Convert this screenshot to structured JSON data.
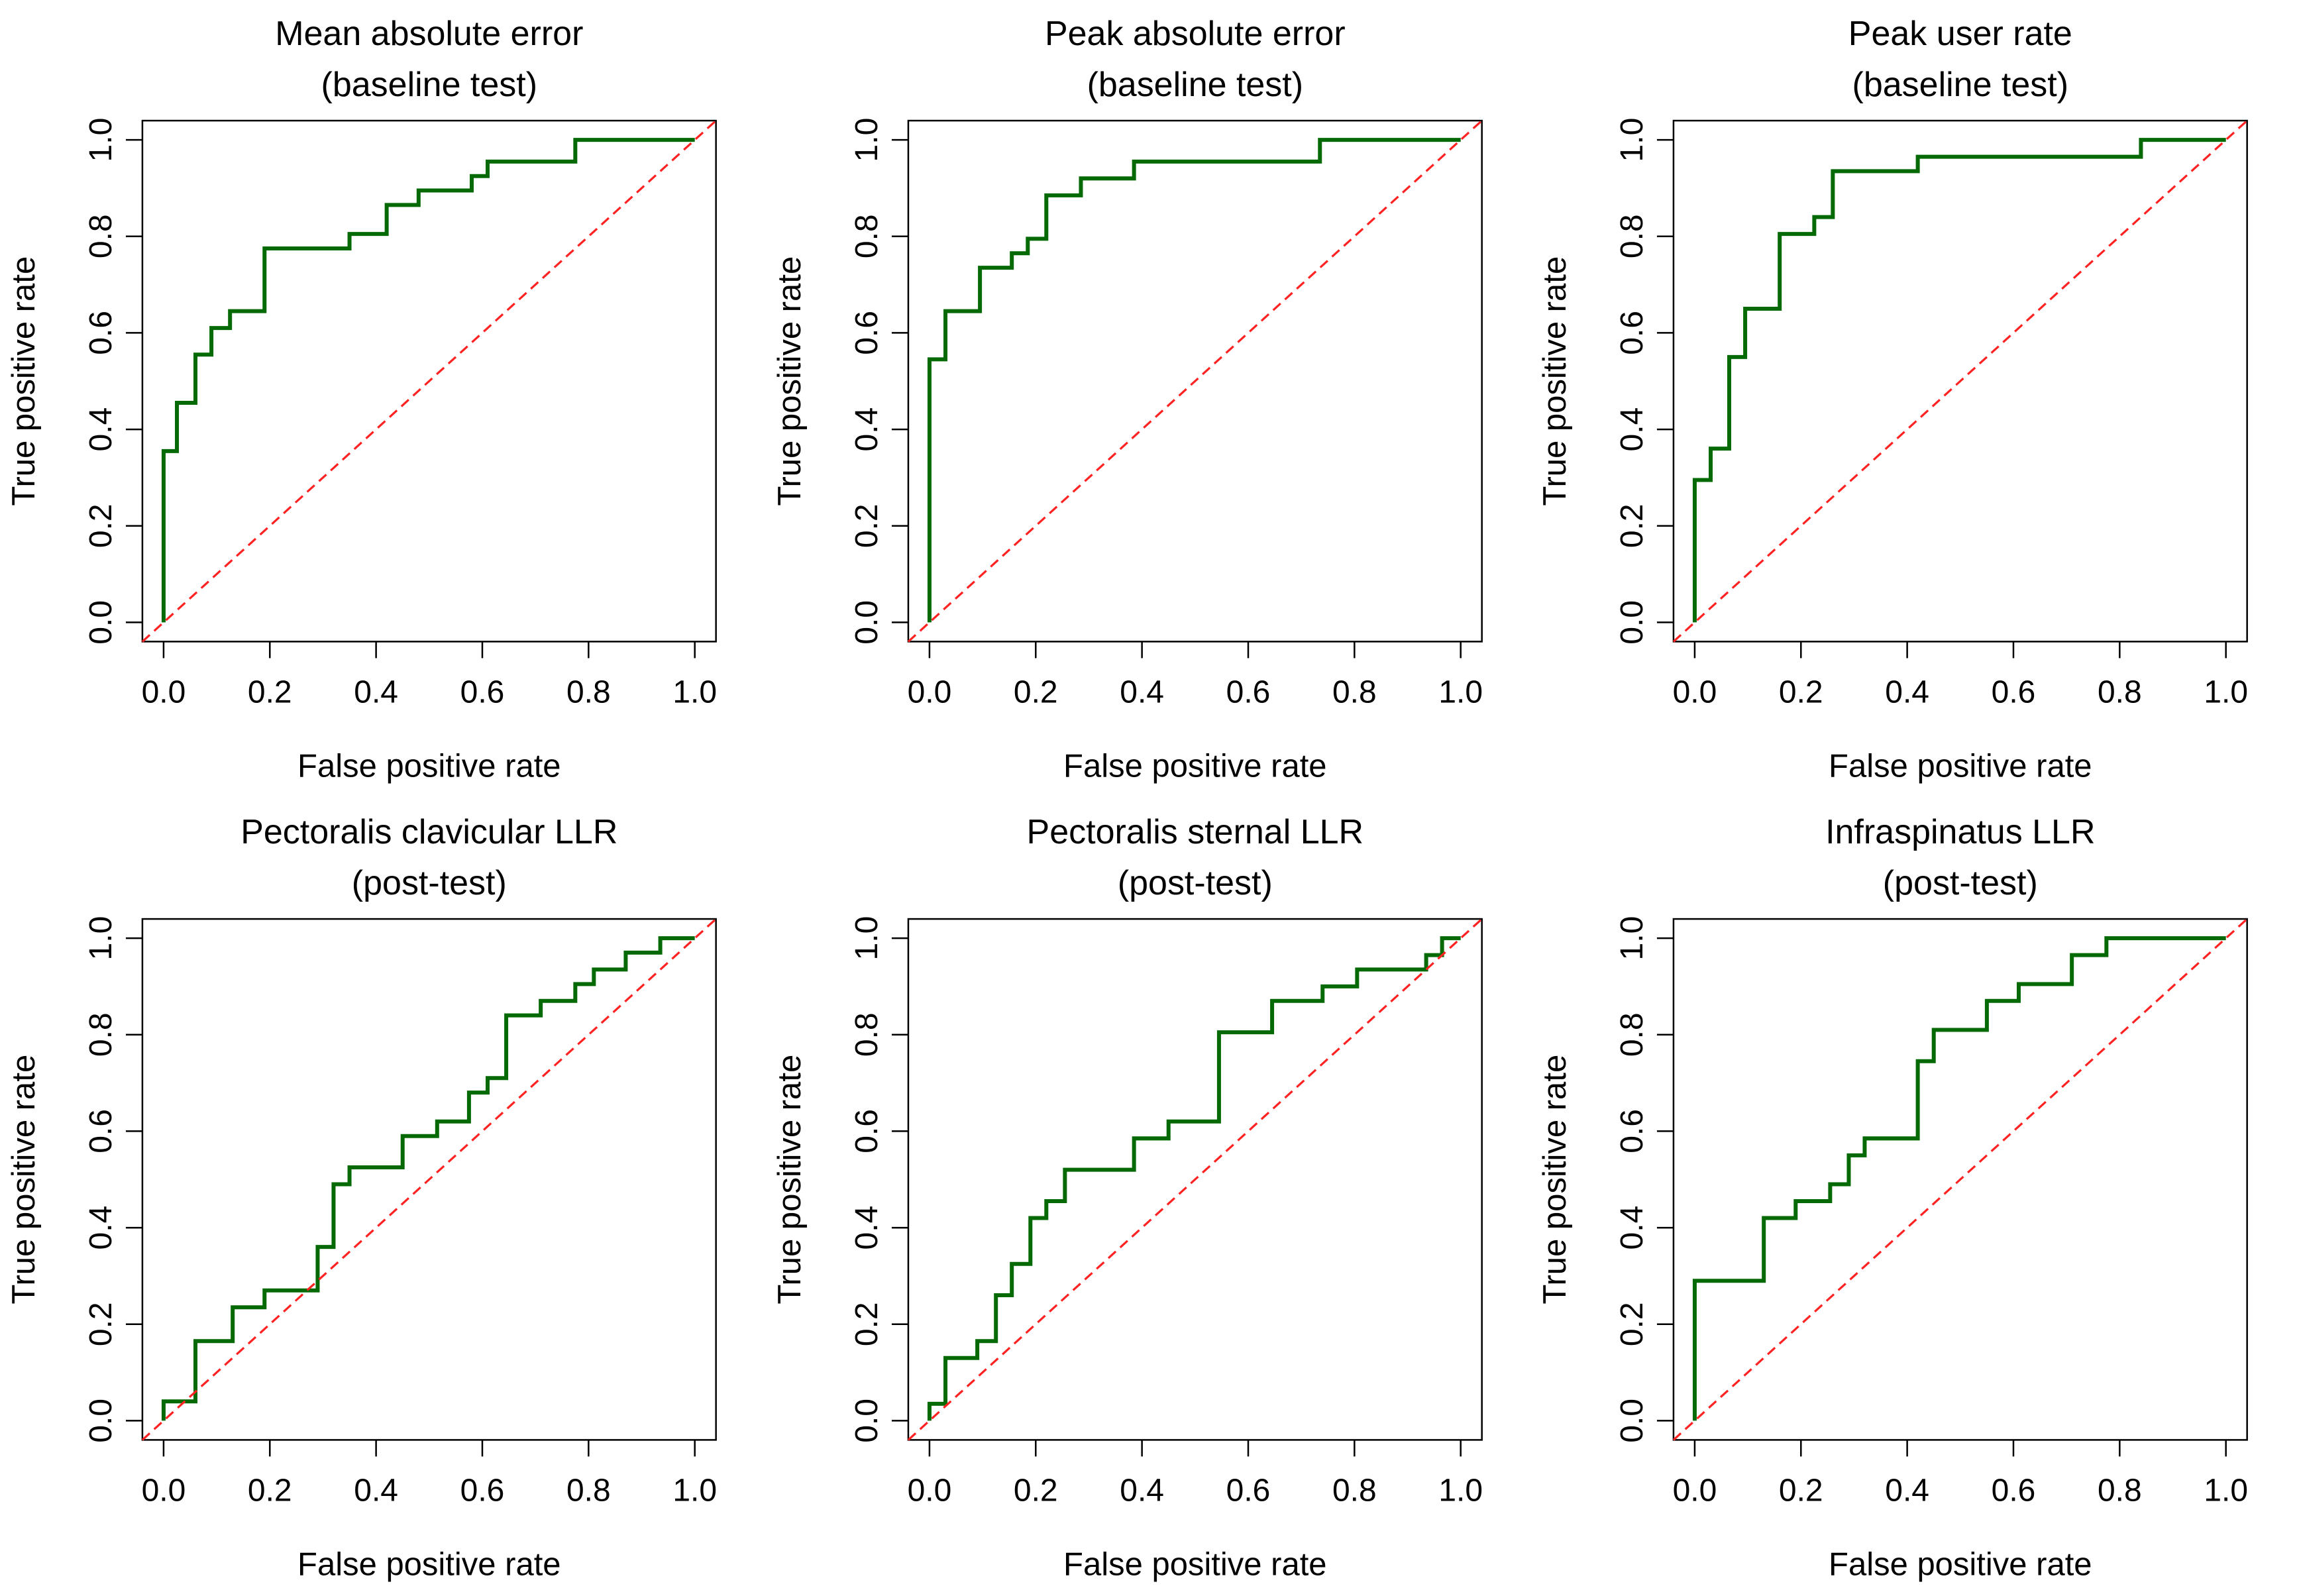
{
  "figure": {
    "layout": "2 rows x 3 columns of ROC plots",
    "rows": 2,
    "cols": 3
  },
  "colors": {
    "roc_curve": "#056905",
    "chance_line": "#ff2222",
    "axis": "#000000",
    "background": "#ffffff"
  },
  "chart_data": [
    {
      "type": "line",
      "subtype": "roc-step",
      "title": "Mean absolute error\n(baseline test)",
      "title_lines": [
        "Mean absolute error",
        "(baseline test)"
      ],
      "xlabel": "False positive rate",
      "ylabel": "True positive rate",
      "xlim": [
        0,
        1
      ],
      "ylim": [
        0,
        1
      ],
      "grid": false,
      "x_ticks": [
        0,
        0.2,
        0.4,
        0.6,
        0.8,
        1.0
      ],
      "y_ticks": [
        0,
        0.2,
        0.4,
        0.6,
        0.8,
        1.0
      ],
      "x_tick_labels": [
        "0.0",
        "0.2",
        "0.4",
        "0.6",
        "0.8",
        "1.0"
      ],
      "y_tick_labels": [
        "0.0",
        "0.2",
        "0.4",
        "0.6",
        "0.8",
        "1.0"
      ],
      "series": [
        {
          "name": "ROC curve",
          "style": "step",
          "color": "#056905",
          "points": [
            [
              0,
              0
            ],
            [
              0,
              0.355
            ],
            [
              0.025,
              0.355
            ],
            [
              0.025,
              0.455
            ],
            [
              0.06,
              0.455
            ],
            [
              0.06,
              0.555
            ],
            [
              0.09,
              0.555
            ],
            [
              0.09,
              0.61
            ],
            [
              0.125,
              0.61
            ],
            [
              0.125,
              0.645
            ],
            [
              0.19,
              0.645
            ],
            [
              0.19,
              0.775
            ],
            [
              0.35,
              0.775
            ],
            [
              0.35,
              0.805
            ],
            [
              0.42,
              0.805
            ],
            [
              0.42,
              0.865
            ],
            [
              0.48,
              0.865
            ],
            [
              0.48,
              0.895
            ],
            [
              0.58,
              0.895
            ],
            [
              0.58,
              0.925
            ],
            [
              0.61,
              0.925
            ],
            [
              0.61,
              0.955
            ],
            [
              0.775,
              0.955
            ],
            [
              0.775,
              1
            ],
            [
              1,
              1
            ]
          ]
        },
        {
          "name": "chance diagonal",
          "style": "dashed",
          "color": "#ff2222",
          "points": [
            [
              0,
              0
            ],
            [
              1,
              1
            ]
          ]
        }
      ]
    },
    {
      "type": "line",
      "subtype": "roc-step",
      "title": "Peak absolute error\n(baseline test)",
      "title_lines": [
        "Peak absolute error",
        "(baseline test)"
      ],
      "xlabel": "False positive rate",
      "ylabel": "True positive rate",
      "xlim": [
        0,
        1
      ],
      "ylim": [
        0,
        1
      ],
      "grid": false,
      "x_ticks": [
        0,
        0.2,
        0.4,
        0.6,
        0.8,
        1.0
      ],
      "y_ticks": [
        0,
        0.2,
        0.4,
        0.6,
        0.8,
        1.0
      ],
      "x_tick_labels": [
        "0.0",
        "0.2",
        "0.4",
        "0.6",
        "0.8",
        "1.0"
      ],
      "y_tick_labels": [
        "0.0",
        "0.2",
        "0.4",
        "0.6",
        "0.8",
        "1.0"
      ],
      "series": [
        {
          "name": "ROC curve",
          "style": "step",
          "color": "#056905",
          "points": [
            [
              0,
              0
            ],
            [
              0,
              0.545
            ],
            [
              0.03,
              0.545
            ],
            [
              0.03,
              0.645
            ],
            [
              0.095,
              0.645
            ],
            [
              0.095,
              0.735
            ],
            [
              0.155,
              0.735
            ],
            [
              0.155,
              0.765
            ],
            [
              0.185,
              0.765
            ],
            [
              0.185,
              0.795
            ],
            [
              0.22,
              0.795
            ],
            [
              0.22,
              0.885
            ],
            [
              0.285,
              0.885
            ],
            [
              0.285,
              0.92
            ],
            [
              0.385,
              0.92
            ],
            [
              0.385,
              0.955
            ],
            [
              0.735,
              0.955
            ],
            [
              0.735,
              1
            ],
            [
              1,
              1
            ]
          ]
        },
        {
          "name": "chance diagonal",
          "style": "dashed",
          "color": "#ff2222",
          "points": [
            [
              0,
              0
            ],
            [
              1,
              1
            ]
          ]
        }
      ]
    },
    {
      "type": "line",
      "subtype": "roc-step",
      "title": "Peak user rate\n(baseline test)",
      "title_lines": [
        "Peak user rate",
        "(baseline test)"
      ],
      "xlabel": "False positive rate",
      "ylabel": "True positive rate",
      "xlim": [
        0,
        1
      ],
      "ylim": [
        0,
        1
      ],
      "grid": false,
      "x_ticks": [
        0,
        0.2,
        0.4,
        0.6,
        0.8,
        1.0
      ],
      "y_ticks": [
        0,
        0.2,
        0.4,
        0.6,
        0.8,
        1.0
      ],
      "x_tick_labels": [
        "0.0",
        "0.2",
        "0.4",
        "0.6",
        "0.8",
        "1.0"
      ],
      "y_tick_labels": [
        "0.0",
        "0.2",
        "0.4",
        "0.6",
        "0.8",
        "1.0"
      ],
      "series": [
        {
          "name": "ROC curve",
          "style": "step",
          "color": "#056905",
          "points": [
            [
              0,
              0
            ],
            [
              0,
              0.295
            ],
            [
              0.03,
              0.295
            ],
            [
              0.03,
              0.36
            ],
            [
              0.065,
              0.36
            ],
            [
              0.065,
              0.55
            ],
            [
              0.095,
              0.55
            ],
            [
              0.095,
              0.65
            ],
            [
              0.16,
              0.65
            ],
            [
              0.16,
              0.805
            ],
            [
              0.225,
              0.805
            ],
            [
              0.225,
              0.84
            ],
            [
              0.26,
              0.84
            ],
            [
              0.26,
              0.935
            ],
            [
              0.42,
              0.935
            ],
            [
              0.42,
              0.965
            ],
            [
              0.84,
              0.965
            ],
            [
              0.84,
              1
            ],
            [
              1,
              1
            ]
          ]
        },
        {
          "name": "chance diagonal",
          "style": "dashed",
          "color": "#ff2222",
          "points": [
            [
              0,
              0
            ],
            [
              1,
              1
            ]
          ]
        }
      ]
    },
    {
      "type": "line",
      "subtype": "roc-step",
      "title": "Pectoralis clavicular LLR\n(post-test)",
      "title_lines": [
        "Pectoralis clavicular LLR",
        "(post-test)"
      ],
      "xlabel": "False positive rate",
      "ylabel": "True positive rate",
      "xlim": [
        0,
        1
      ],
      "ylim": [
        0,
        1
      ],
      "grid": false,
      "x_ticks": [
        0,
        0.2,
        0.4,
        0.6,
        0.8,
        1.0
      ],
      "y_ticks": [
        0,
        0.2,
        0.4,
        0.6,
        0.8,
        1.0
      ],
      "x_tick_labels": [
        "0.0",
        "0.2",
        "0.4",
        "0.6",
        "0.8",
        "1.0"
      ],
      "y_tick_labels": [
        "0.0",
        "0.2",
        "0.4",
        "0.6",
        "0.8",
        "1.0"
      ],
      "series": [
        {
          "name": "ROC curve",
          "style": "step",
          "color": "#056905",
          "points": [
            [
              0,
              0
            ],
            [
              0,
              0.04
            ],
            [
              0.06,
              0.04
            ],
            [
              0.06,
              0.165
            ],
            [
              0.13,
              0.165
            ],
            [
              0.13,
              0.235
            ],
            [
              0.19,
              0.235
            ],
            [
              0.19,
              0.27
            ],
            [
              0.29,
              0.27
            ],
            [
              0.29,
              0.36
            ],
            [
              0.32,
              0.36
            ],
            [
              0.32,
              0.49
            ],
            [
              0.35,
              0.49
            ],
            [
              0.35,
              0.525
            ],
            [
              0.45,
              0.525
            ],
            [
              0.45,
              0.59
            ],
            [
              0.515,
              0.59
            ],
            [
              0.515,
              0.62
            ],
            [
              0.575,
              0.62
            ],
            [
              0.575,
              0.68
            ],
            [
              0.61,
              0.68
            ],
            [
              0.61,
              0.71
            ],
            [
              0.645,
              0.71
            ],
            [
              0.645,
              0.84
            ],
            [
              0.71,
              0.84
            ],
            [
              0.71,
              0.87
            ],
            [
              0.775,
              0.87
            ],
            [
              0.775,
              0.905
            ],
            [
              0.81,
              0.905
            ],
            [
              0.81,
              0.935
            ],
            [
              0.87,
              0.935
            ],
            [
              0.87,
              0.97
            ],
            [
              0.935,
              0.97
            ],
            [
              0.935,
              1
            ],
            [
              1,
              1
            ]
          ]
        },
        {
          "name": "chance diagonal",
          "style": "dashed",
          "color": "#ff2222",
          "points": [
            [
              0,
              0
            ],
            [
              1,
              1
            ]
          ]
        }
      ]
    },
    {
      "type": "line",
      "subtype": "roc-step",
      "title": "Pectoralis sternal LLR\n(post-test)",
      "title_lines": [
        "Pectoralis sternal LLR",
        "(post-test)"
      ],
      "xlabel": "False positive rate",
      "ylabel": "True positive rate",
      "xlim": [
        0,
        1
      ],
      "ylim": [
        0,
        1
      ],
      "grid": false,
      "x_ticks": [
        0,
        0.2,
        0.4,
        0.6,
        0.8,
        1.0
      ],
      "y_ticks": [
        0,
        0.2,
        0.4,
        0.6,
        0.8,
        1.0
      ],
      "x_tick_labels": [
        "0.0",
        "0.2",
        "0.4",
        "0.6",
        "0.8",
        "1.0"
      ],
      "y_tick_labels": [
        "0.0",
        "0.2",
        "0.4",
        "0.6",
        "0.8",
        "1.0"
      ],
      "series": [
        {
          "name": "ROC curve",
          "style": "step",
          "color": "#056905",
          "points": [
            [
              0,
              0
            ],
            [
              0,
              0.035
            ],
            [
              0.03,
              0.035
            ],
            [
              0.03,
              0.13
            ],
            [
              0.09,
              0.13
            ],
            [
              0.09,
              0.165
            ],
            [
              0.125,
              0.165
            ],
            [
              0.125,
              0.26
            ],
            [
              0.155,
              0.26
            ],
            [
              0.155,
              0.325
            ],
            [
              0.19,
              0.325
            ],
            [
              0.19,
              0.42
            ],
            [
              0.22,
              0.42
            ],
            [
              0.22,
              0.455
            ],
            [
              0.255,
              0.455
            ],
            [
              0.255,
              0.52
            ],
            [
              0.385,
              0.52
            ],
            [
              0.385,
              0.585
            ],
            [
              0.45,
              0.585
            ],
            [
              0.45,
              0.62
            ],
            [
              0.545,
              0.62
            ],
            [
              0.545,
              0.805
            ],
            [
              0.645,
              0.805
            ],
            [
              0.645,
              0.87
            ],
            [
              0.74,
              0.87
            ],
            [
              0.74,
              0.9
            ],
            [
              0.805,
              0.9
            ],
            [
              0.805,
              0.935
            ],
            [
              0.935,
              0.935
            ],
            [
              0.935,
              0.965
            ],
            [
              0.965,
              0.965
            ],
            [
              0.965,
              1
            ],
            [
              1,
              1
            ]
          ]
        },
        {
          "name": "chance diagonal",
          "style": "dashed",
          "color": "#ff2222",
          "points": [
            [
              0,
              0
            ],
            [
              1,
              1
            ]
          ]
        }
      ]
    },
    {
      "type": "line",
      "subtype": "roc-step",
      "title": "Infraspinatus LLR\n(post-test)",
      "title_lines": [
        "Infraspinatus LLR",
        "(post-test)"
      ],
      "xlabel": "False positive rate",
      "ylabel": "True positive rate",
      "xlim": [
        0,
        1
      ],
      "ylim": [
        0,
        1
      ],
      "grid": false,
      "x_ticks": [
        0,
        0.2,
        0.4,
        0.6,
        0.8,
        1.0
      ],
      "y_ticks": [
        0,
        0.2,
        0.4,
        0.6,
        0.8,
        1.0
      ],
      "x_tick_labels": [
        "0.0",
        "0.2",
        "0.4",
        "0.6",
        "0.8",
        "1.0"
      ],
      "y_tick_labels": [
        "0.0",
        "0.2",
        "0.4",
        "0.6",
        "0.8",
        "1.0"
      ],
      "series": [
        {
          "name": "ROC curve",
          "style": "step",
          "color": "#056905",
          "points": [
            [
              0,
              0
            ],
            [
              0,
              0.29
            ],
            [
              0.13,
              0.29
            ],
            [
              0.13,
              0.42
            ],
            [
              0.19,
              0.42
            ],
            [
              0.19,
              0.455
            ],
            [
              0.255,
              0.455
            ],
            [
              0.255,
              0.49
            ],
            [
              0.29,
              0.49
            ],
            [
              0.29,
              0.55
            ],
            [
              0.32,
              0.55
            ],
            [
              0.32,
              0.585
            ],
            [
              0.42,
              0.585
            ],
            [
              0.42,
              0.745
            ],
            [
              0.45,
              0.745
            ],
            [
              0.45,
              0.81
            ],
            [
              0.55,
              0.81
            ],
            [
              0.55,
              0.87
            ],
            [
              0.61,
              0.87
            ],
            [
              0.61,
              0.905
            ],
            [
              0.71,
              0.905
            ],
            [
              0.71,
              0.965
            ],
            [
              0.775,
              0.965
            ],
            [
              0.775,
              1
            ],
            [
              1,
              1
            ]
          ]
        },
        {
          "name": "chance diagonal",
          "style": "dashed",
          "color": "#ff2222",
          "points": [
            [
              0,
              0
            ],
            [
              1,
              1
            ]
          ]
        }
      ]
    }
  ]
}
